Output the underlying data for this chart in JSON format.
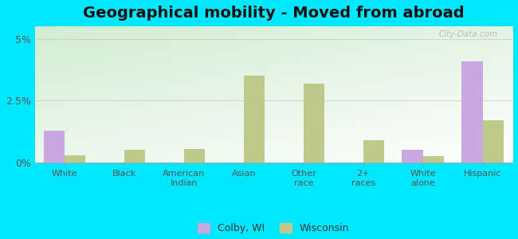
{
  "title": "Geographical mobility - Moved from abroad",
  "categories": [
    "White",
    "Black",
    "American\nIndian",
    "Asian",
    "Other\nrace",
    "2+\nraces",
    "White\nalone",
    "Hispanic"
  ],
  "colby_values": [
    1.3,
    0.0,
    0.0,
    0.0,
    0.0,
    0.0,
    0.5,
    4.1
  ],
  "wisconsin_values": [
    0.3,
    0.5,
    0.55,
    3.5,
    3.2,
    0.9,
    0.25,
    1.7
  ],
  "colby_color": "#c9a8e0",
  "wisconsin_color": "#bfc98a",
  "background_outer": "#00e8ff",
  "yticks": [
    0,
    2.5,
    5
  ],
  "ytick_labels": [
    "0%",
    "2.5%",
    "5%"
  ],
  "ylim": [
    0,
    5.5
  ],
  "legend_labels": [
    "Colby, WI",
    "Wisconsin"
  ],
  "bar_width": 0.35,
  "title_fontsize": 14,
  "watermark": "City-Data.com"
}
